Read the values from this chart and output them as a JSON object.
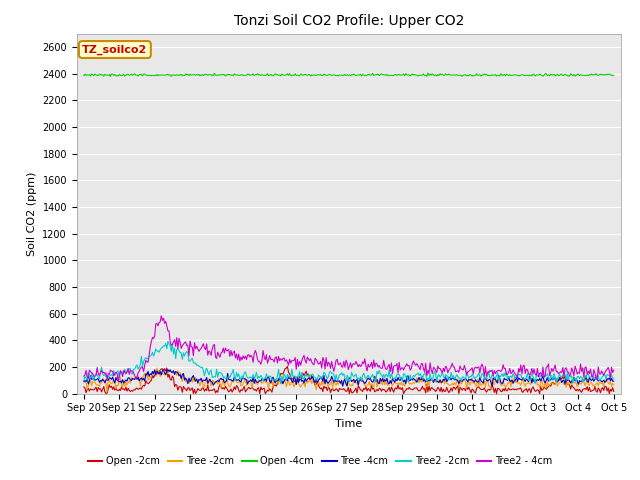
{
  "title": "Tonzi Soil CO2 Profile: Upper CO2",
  "ylabel": "Soil CO2 (ppm)",
  "xlabel": "Time",
  "ylim": [
    0,
    2700
  ],
  "yticks": [
    0,
    200,
    400,
    600,
    800,
    1000,
    1200,
    1400,
    1600,
    1800,
    2000,
    2200,
    2400,
    2600
  ],
  "legend_label": "TZ_soilco2",
  "legend_facecolor": "#ffffcc",
  "legend_edgecolor": "#cc8800",
  "legend_text_color": "#cc0000",
  "series": {
    "Open_2cm": {
      "color": "#cc0000",
      "label": "Open -2cm"
    },
    "Tree_2cm": {
      "color": "#ff9900",
      "label": "Tree -2cm"
    },
    "Open_4cm": {
      "color": "#00cc00",
      "label": "Open -4cm"
    },
    "Tree_4cm": {
      "color": "#0000cc",
      "label": "Tree -4cm"
    },
    "Tree2_2cm": {
      "color": "#00cccc",
      "label": "Tree2 -2cm"
    },
    "Tree2_4cm": {
      "color": "#cc00cc",
      "label": "Tree2 - 4cm"
    }
  },
  "series_order": [
    "Open_2cm",
    "Tree_2cm",
    "Open_4cm",
    "Tree_4cm",
    "Tree2_2cm",
    "Tree2_4cm"
  ],
  "background_color": "#e8e8e8",
  "grid_color": "#ffffff",
  "title_fontsize": 10,
  "axis_fontsize": 8,
  "tick_fontsize": 7,
  "legend_fontsize": 7
}
